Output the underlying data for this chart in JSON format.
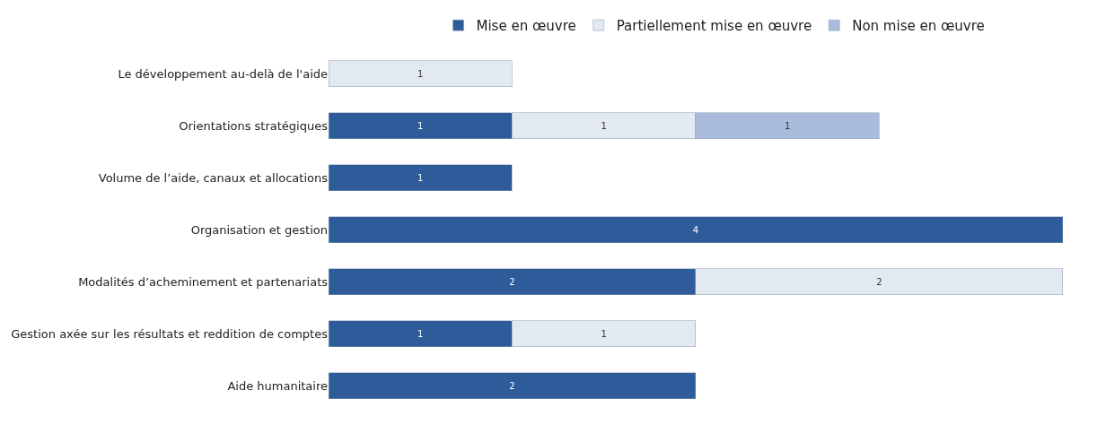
{
  "chart_data": {
    "type": "bar",
    "orientation": "horizontal",
    "stacked": true,
    "data_labels": true,
    "legend": "top",
    "tick_labels": "y",
    "categories": [
      "Le développement au-delà de l'aide",
      "Orientations stratégiques",
      "Volume de l’aide, canaux et allocations",
      "Organisation et gestion",
      "Modalités d’acheminement et partenariats",
      "Gestion axée sur les résultats et reddition de comptes",
      "Aide humanitaire"
    ],
    "series": [
      {
        "name": "Mise en œuvre",
        "color": "#2e5c9a",
        "values": [
          null,
          1,
          1,
          4,
          2,
          1,
          2
        ]
      },
      {
        "name": "Partiellement mise en œuvre",
        "color": "#e3e9f1",
        "values": [
          1,
          1,
          null,
          null,
          2,
          1,
          null
        ]
      },
      {
        "name": "Non mise en œuvre",
        "color": "#aabcdb",
        "values": [
          null,
          1,
          null,
          null,
          null,
          null,
          null
        ]
      }
    ]
  }
}
